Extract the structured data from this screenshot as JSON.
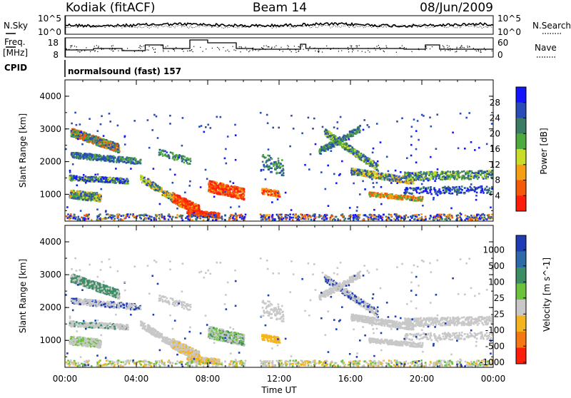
{
  "header": {
    "station": "Kodiak (fitACF)",
    "beam": "Beam 14",
    "date": "08/Jun/2009"
  },
  "summary_panels": {
    "nsky_label": "N.Sky",
    "nsky_ticks": [
      "10^5",
      "10^0"
    ],
    "nsearch_label": "N.Search",
    "nsearch_ticks": [
      "10^5",
      "10^0"
    ],
    "freq_label_1": "Freq.",
    "freq_label_2": "[MHz]",
    "freq_ticks": [
      "18",
      "8"
    ],
    "nave_label": "Nave",
    "nave_ticks": [
      "60",
      "0"
    ],
    "cpid_label": "CPID",
    "cpid_text": "normalsound (fast) 157"
  },
  "chart_data": [
    {
      "type": "heatmap",
      "name": "power-panel",
      "ylabel": "Slant Range [km]",
      "ylim": [
        180,
        4500
      ],
      "yticks": [
        "1000",
        "2000",
        "3000",
        "4000"
      ],
      "xticks": [
        "00:00",
        "04:00",
        "08:00",
        "12:00",
        "16:00",
        "20:00",
        "00:00"
      ],
      "colorbar": {
        "label": "Power [dB]",
        "ticks": [
          "4",
          "8",
          "12",
          "16",
          "20",
          "24",
          "28"
        ],
        "colors": [
          "#1414ff",
          "#2a4cb8",
          "#3c7c64",
          "#4eaa3c",
          "#c8dc28",
          "#f5a014",
          "#f55a0a",
          "#ff1e0a"
        ]
      }
    },
    {
      "type": "heatmap",
      "name": "velocity-panel",
      "ylabel": "Slant Range [km]",
      "ylim": [
        180,
        4500
      ],
      "yticks": [
        "1000",
        "2000",
        "3000",
        "4000"
      ],
      "xticks": [
        "00:00",
        "04:00",
        "08:00",
        "12:00",
        "16:00",
        "20:00",
        "00:00"
      ],
      "xlabel": "Time UT",
      "colorbar": {
        "label": "Velocity [m s^-1]",
        "ticks": [
          "1000",
          "500",
          "100",
          "25",
          "-25",
          "-100",
          "-500",
          "-1000"
        ],
        "colors": [
          "#1e3cb4",
          "#2c6aa8",
          "#3c8c64",
          "#6cc23c",
          "#c8c8c8",
          "#f5b41e",
          "#f57814",
          "#ff1e0a"
        ]
      }
    }
  ]
}
